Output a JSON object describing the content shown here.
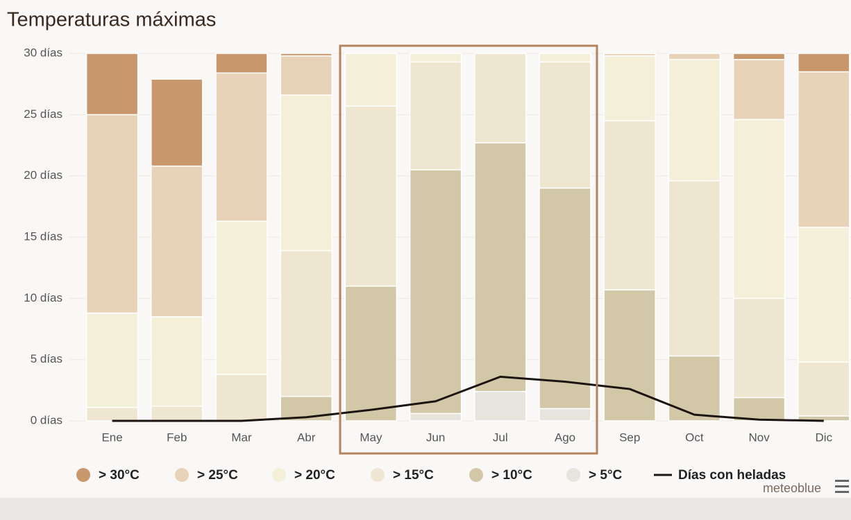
{
  "chart_data": {
    "type": "stacked_bar",
    "title": "Temperaturas máximas",
    "categories": [
      "Ene",
      "Feb",
      "Mar",
      "Abr",
      "May",
      "Jun",
      "Jul",
      "Ago",
      "Sep",
      "Oct",
      "Nov",
      "Dic"
    ],
    "series": [
      {
        "name": "> 30°C",
        "color": "#c9976c",
        "values": [
          5.0,
          7.1,
          1.6,
          0.2,
          0,
          0,
          0,
          0,
          0,
          0,
          0.5,
          1.5
        ]
      },
      {
        "name": "> 25°C",
        "color": "#e8d3b8",
        "values": [
          16.2,
          12.3,
          12.1,
          3.2,
          0,
          0,
          0,
          0,
          0.2,
          0.5,
          4.9,
          12.7
        ]
      },
      {
        "name": "> 20°C",
        "color": "#f4efd8",
        "values": [
          7.7,
          7.3,
          12.5,
          12.7,
          4.3,
          0.7,
          0,
          0.7,
          5.3,
          9.9,
          14.6,
          11.0
        ]
      },
      {
        "name": "> 15°C",
        "color": "#eee6d0",
        "values": [
          1.1,
          1.2,
          3.8,
          11.9,
          14.7,
          8.8,
          7.3,
          10.3,
          13.8,
          14.3,
          8.1,
          4.4
        ]
      },
      {
        "name": "> 10°C",
        "color": "#d2c8a8",
        "values": [
          0,
          0,
          0,
          2.0,
          11.0,
          19.9,
          20.3,
          18.0,
          10.7,
          5.3,
          1.9,
          0.4
        ]
      },
      {
        "name": "> 5°C",
        "color": "#e7e4dd",
        "values": [
          0,
          0,
          0,
          0,
          0,
          0.6,
          2.4,
          1.0,
          0,
          0,
          0,
          0
        ]
      }
    ],
    "line": {
      "name": "Días con heladas",
      "color": "#1b1410",
      "values": [
        0,
        0,
        0,
        0.3,
        0.9,
        1.6,
        3.6,
        3.2,
        2.6,
        0.5,
        0.1,
        0
      ]
    },
    "ylim": [
      0,
      30
    ],
    "yticks": [
      {
        "value": 0,
        "label": "0 días"
      },
      {
        "value": 5,
        "label": "5 días"
      },
      {
        "value": 10,
        "label": "10 días"
      },
      {
        "value": 15,
        "label": "15 días"
      },
      {
        "value": 20,
        "label": "20 días"
      },
      {
        "value": 25,
        "label": "25 días"
      },
      {
        "value": 30,
        "label": "30 días"
      }
    ],
    "grid": true,
    "credit": "meteoblue"
  }
}
